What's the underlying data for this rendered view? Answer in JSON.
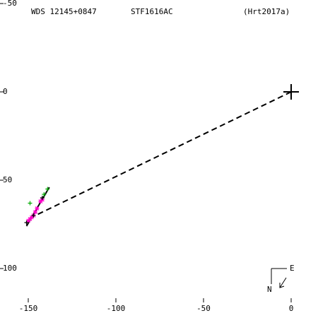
{
  "chart_data": {
    "type": "scatter",
    "title": "WDS 12145+0847",
    "subtitle": "STF1616AC",
    "annotation": "(Hrt2017a)",
    "xlim": [
      -166.13,
      15.32
    ],
    "ylim": [
      -52,
      128
    ],
    "xticks": [
      -150,
      -100,
      -50,
      0
    ],
    "yticks": [
      -50,
      0,
      50,
      100
    ],
    "primary": {
      "x": 0,
      "y": 0,
      "color": "#000000"
    },
    "lines": [
      {
        "x": [
          0,
          -146
        ],
        "values": [
          0,
          70
        ],
        "color": "#000000",
        "dash": true
      },
      {
        "x": [
          -151,
          -138
        ],
        "values": [
          76,
          54
        ],
        "color": "#000000",
        "dash": false
      }
    ],
    "series": [
      {
        "color": "#ff00cc",
        "marker": "star",
        "x": [
          -150,
          -149,
          -148,
          -147,
          -146,
          -145,
          -143,
          -142
        ],
        "values": [
          73,
          72,
          71,
          70,
          68,
          66,
          62,
          61
        ]
      },
      {
        "color": "#00aa00",
        "marker": "plus",
        "x": [
          -149,
          -141,
          -139
        ],
        "values": [
          63,
          58,
          55
        ]
      },
      {
        "color": "#000000",
        "marker": "plus",
        "x": [
          -151,
          -147,
          -142
        ],
        "values": [
          74,
          70,
          60
        ]
      }
    ]
  },
  "compass": {
    "north": "N",
    "east": "E"
  }
}
